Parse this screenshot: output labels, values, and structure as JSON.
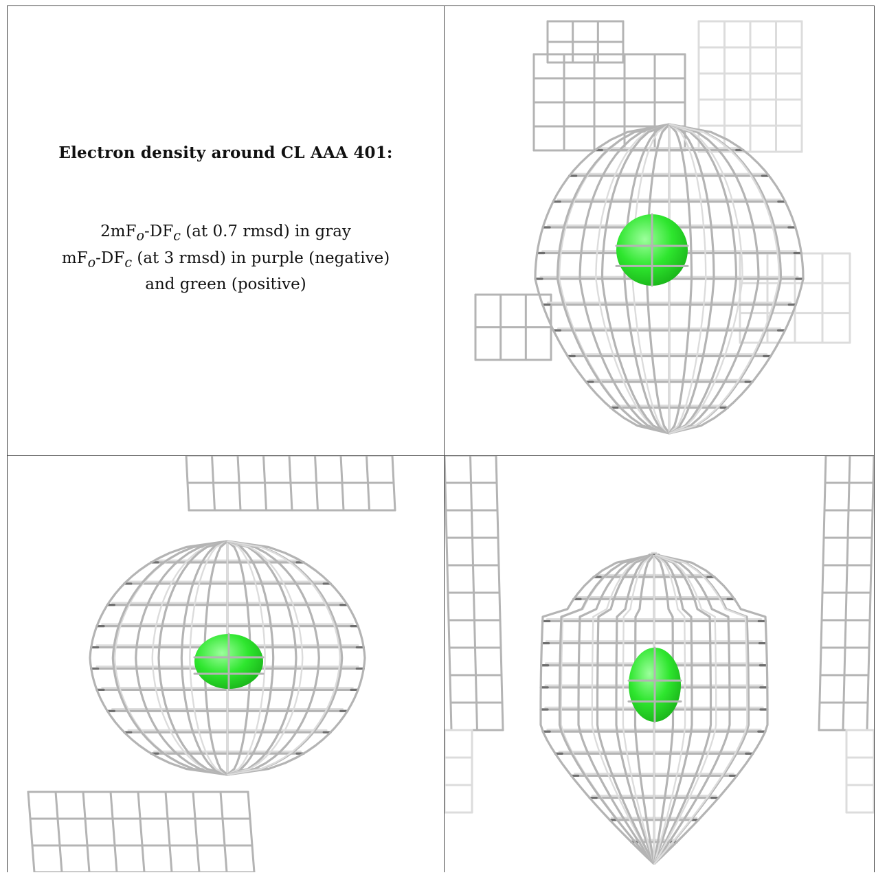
{
  "caption": {
    "title": "Electron density around CL AAA 401:",
    "line1": {
      "pre": "2mF",
      "sub1": "o",
      "mid": "-DF",
      "sub2": "c",
      "post": " (at 0.7 rmsd) in gray"
    },
    "line2": {
      "pre": "mF",
      "sub1": "o",
      "mid": "-DF",
      "sub2": "c",
      "post": " (at 3 rmsd) in purple (negative)"
    },
    "line3": "and green (positive)"
  },
  "colors": {
    "mesh": "#b4b4b4",
    "mesh_dark": "#6e6e6e",
    "mesh_faint": "#dcdcdc",
    "ion": "#2ee62e",
    "border": "#444444"
  },
  "panels": [
    {
      "view": "top-right",
      "ion": "chloride-sphere"
    },
    {
      "view": "bottom-left",
      "ion": "chloride-sphere"
    },
    {
      "view": "bottom-right",
      "ion": "chloride-sphere"
    }
  ]
}
